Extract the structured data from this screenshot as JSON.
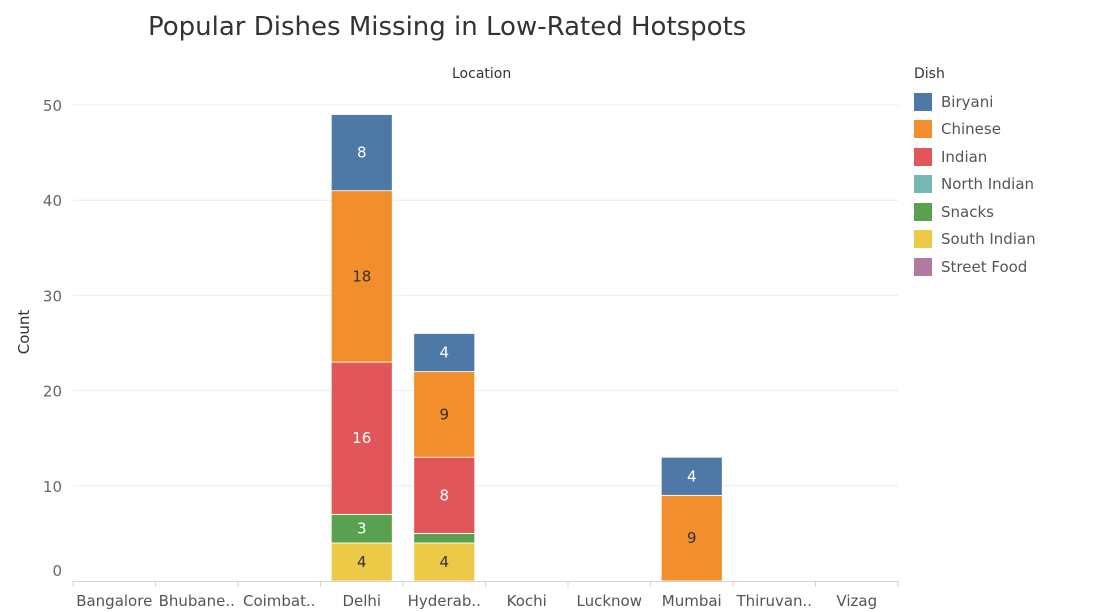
{
  "chart_data": {
    "type": "bar",
    "stacked": true,
    "title": "Popular Dishes Missing in Low-Rated Hotspots",
    "xlabel": "Location",
    "ylabel": "Count",
    "ylim": [
      0,
      52
    ],
    "yticks": [
      0,
      10,
      20,
      30,
      40,
      50
    ],
    "grid": true,
    "legend_title": "Dish",
    "legend_position": "right",
    "categories": [
      "Bangalore",
      "Bhubane..",
      "Coimbat..",
      "Delhi",
      "Hyderab..",
      "Kochi",
      "Lucknow",
      "Mumbai",
      "Thiruvan..",
      "Vizag"
    ],
    "series": [
      {
        "name": "South Indian",
        "color": "#EDC948",
        "values": [
          0,
          0,
          0,
          4,
          4,
          0,
          0,
          0,
          0,
          0
        ],
        "labels": [
          "",
          "",
          "",
          "4",
          "4",
          "",
          "",
          "",
          "",
          ""
        ]
      },
      {
        "name": "Snacks",
        "color": "#59A14F",
        "values": [
          0,
          0,
          0,
          3,
          1,
          0,
          0,
          0,
          0,
          0
        ],
        "labels": [
          "",
          "",
          "",
          "3",
          "",
          "",
          "",
          "",
          "",
          ""
        ]
      },
      {
        "name": "North Indian",
        "color": "#76B7B2",
        "values": [
          0,
          0,
          0,
          0,
          0,
          0,
          0,
          0,
          0,
          0
        ],
        "labels": [
          "",
          "",
          "",
          "",
          "",
          "",
          "",
          "",
          "",
          ""
        ]
      },
      {
        "name": "Indian",
        "color": "#E15759",
        "values": [
          0,
          0,
          0,
          16,
          8,
          0,
          0,
          0,
          0,
          0
        ],
        "labels": [
          "",
          "",
          "",
          "16",
          "8",
          "",
          "",
          "",
          "",
          ""
        ]
      },
      {
        "name": "Chinese",
        "color": "#F28E2B",
        "values": [
          0,
          0,
          0,
          18,
          9,
          0,
          0,
          9,
          0,
          0
        ],
        "labels": [
          "",
          "",
          "",
          "18",
          "9",
          "",
          "",
          "9",
          "",
          ""
        ]
      },
      {
        "name": "Biryani",
        "color": "#4E79A7",
        "values": [
          0,
          0,
          0,
          8,
          4,
          0,
          0,
          4,
          0,
          0
        ],
        "labels": [
          "",
          "",
          "",
          "8",
          "4",
          "",
          "",
          "4",
          "",
          ""
        ]
      },
      {
        "name": "Street Food",
        "color": "#B07AA1",
        "values": [
          0,
          0,
          0,
          0,
          0,
          0,
          0,
          0,
          0,
          0
        ],
        "labels": [
          "",
          "",
          "",
          "",
          "",
          "",
          "",
          "",
          "",
          ""
        ]
      }
    ],
    "legend": [
      {
        "name": "Biryani",
        "color": "#4E79A7"
      },
      {
        "name": "Chinese",
        "color": "#F28E2B"
      },
      {
        "name": "Indian",
        "color": "#E15759"
      },
      {
        "name": "North Indian",
        "color": "#76B7B2"
      },
      {
        "name": "Snacks",
        "color": "#59A14F"
      },
      {
        "name": "South Indian",
        "color": "#EDC948"
      },
      {
        "name": "Street Food",
        "color": "#B07AA1"
      }
    ]
  }
}
